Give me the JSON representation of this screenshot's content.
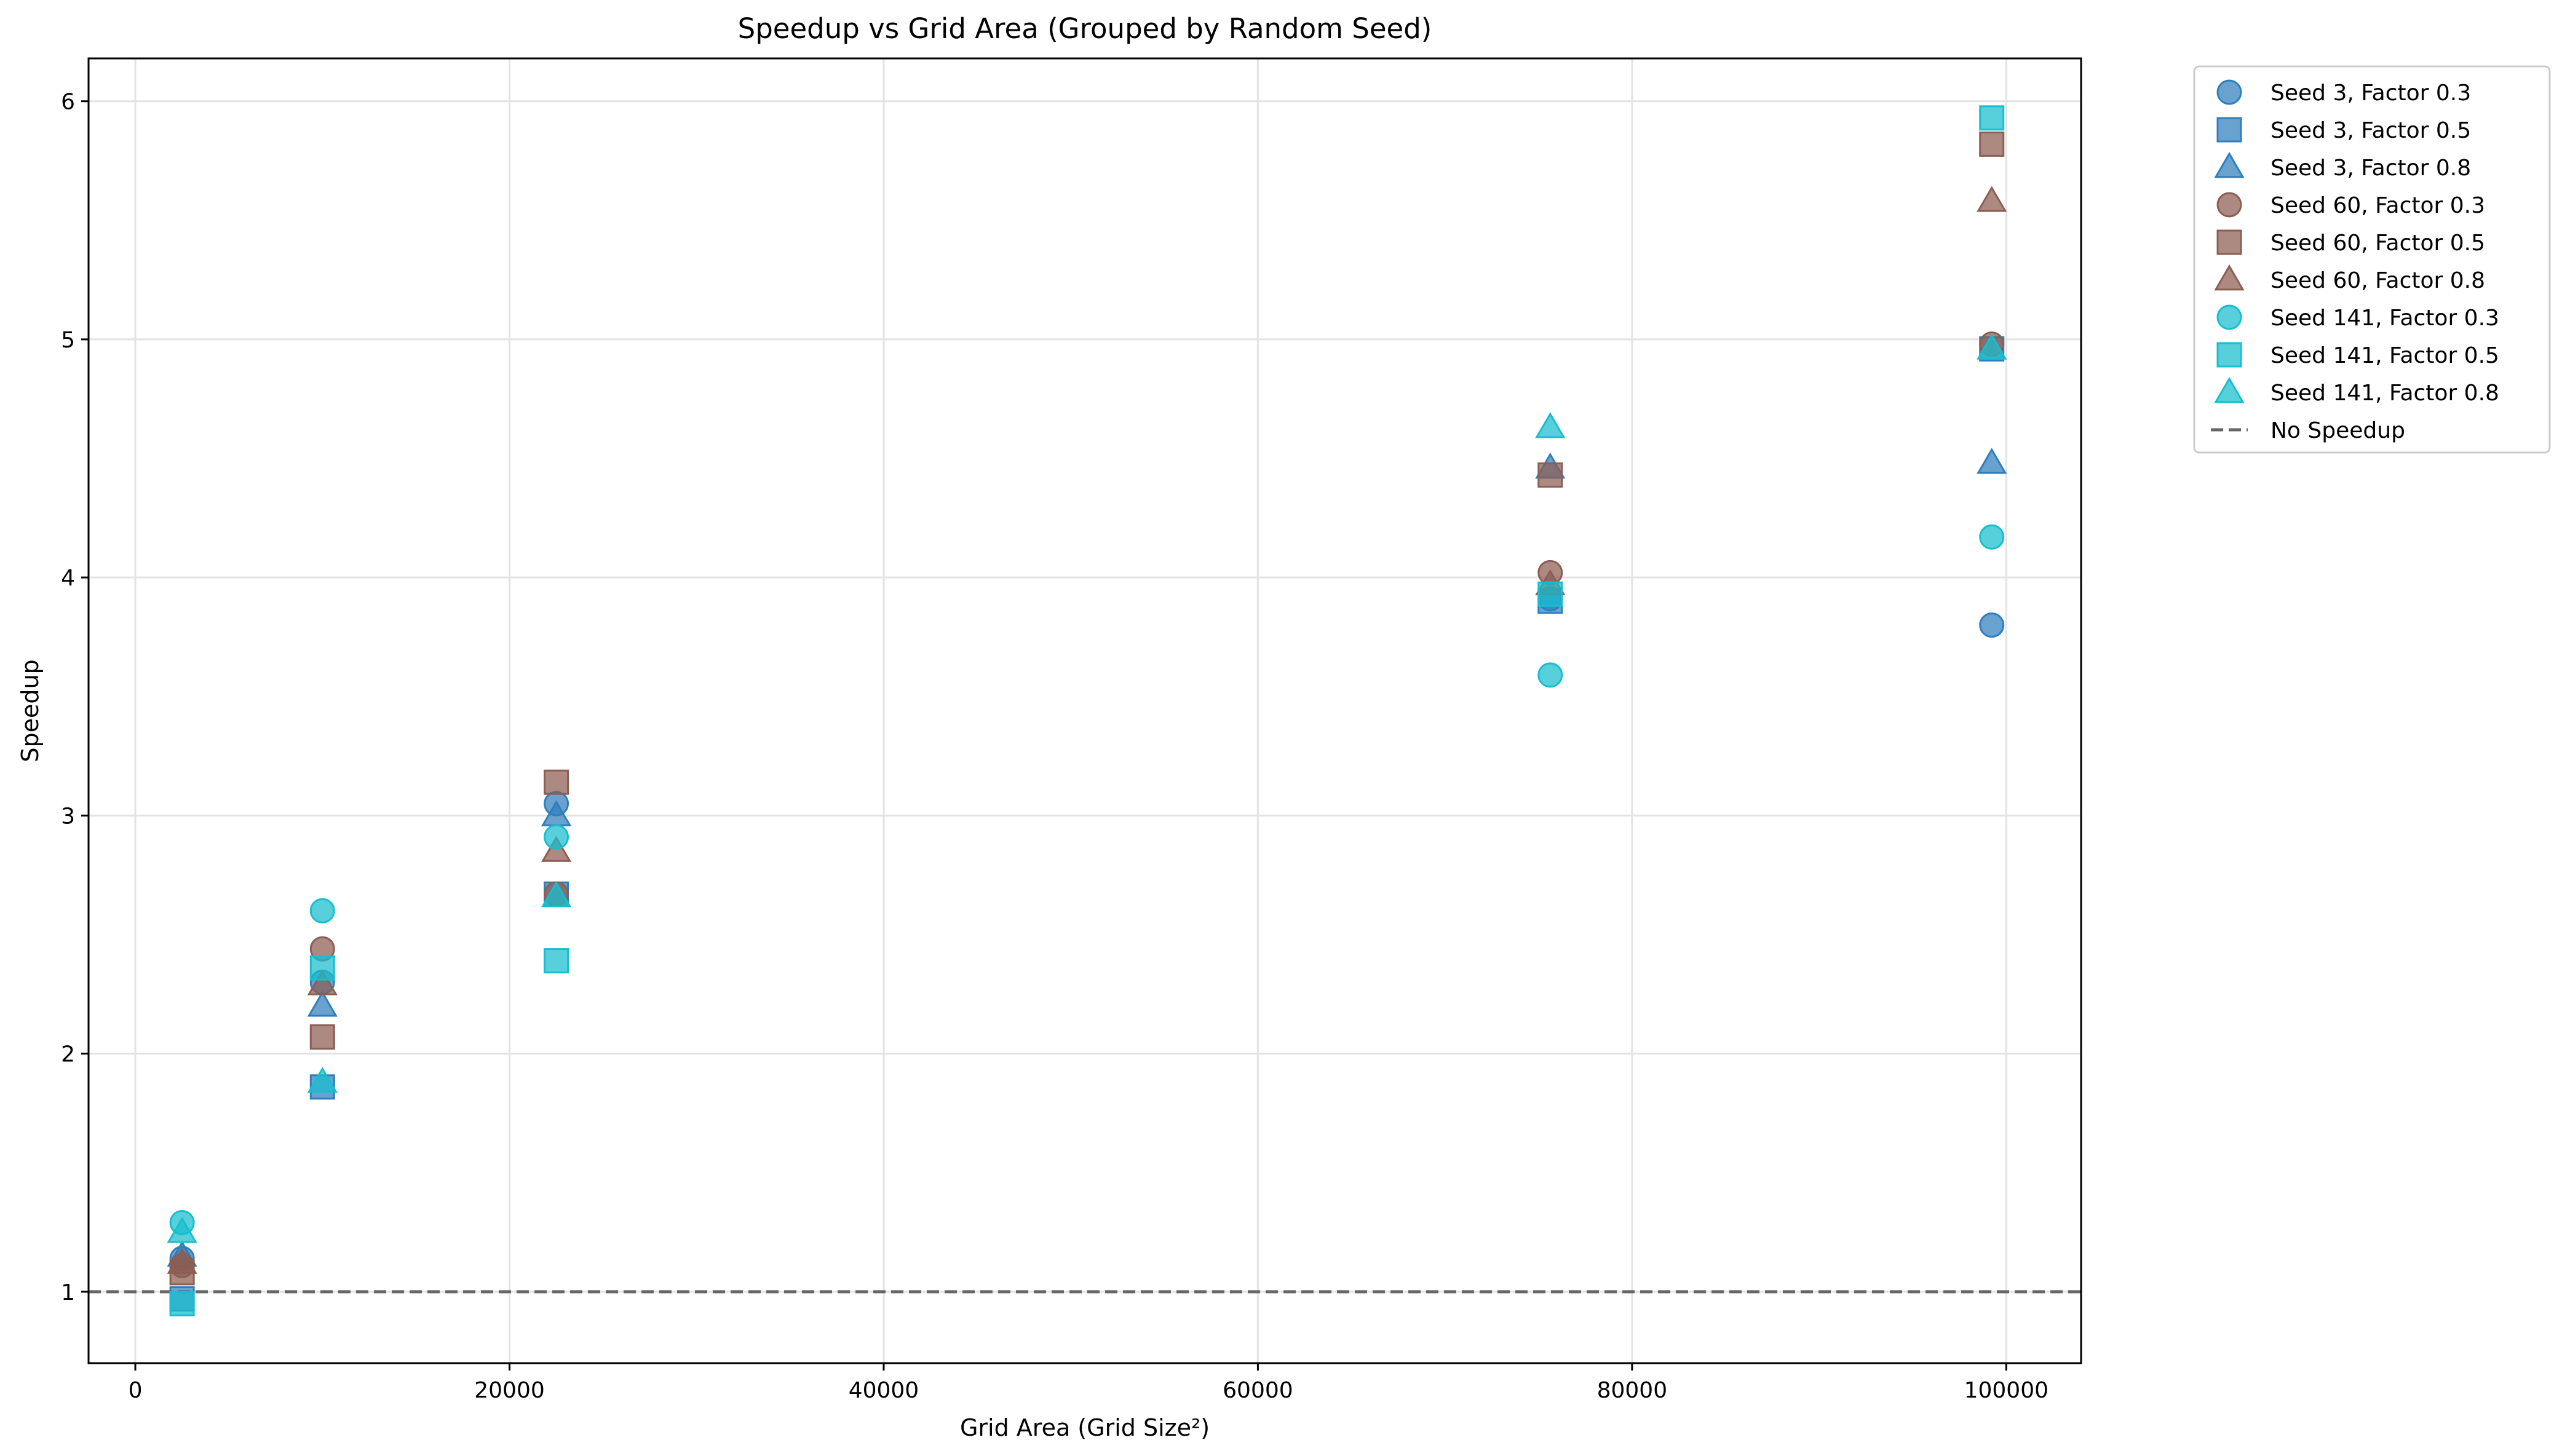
{
  "chart_data": {
    "type": "scatter",
    "title": "Speedup vs Grid Area (Grouped by Random Seed)",
    "xlabel": "Grid Area (Grid Size²)",
    "ylabel": "Speedup",
    "xlim": [
      -2500,
      104000
    ],
    "ylim": [
      0.7,
      6.18
    ],
    "xticks": [
      0,
      20000,
      40000,
      60000,
      80000,
      100000
    ],
    "yticks": [
      1,
      2,
      3,
      4,
      5,
      6
    ],
    "grid": true,
    "legend_position": "outside-top-right",
    "reference_line": {
      "name": "No Speedup",
      "y": 1,
      "style": "dashed",
      "color": "#666666"
    },
    "seed_colors": {
      "3": "#2f7ebc",
      "60": "#8c5d52",
      "141": "#17becf"
    },
    "x": [
      2500,
      10000,
      22500,
      75625,
      99225
    ],
    "series": [
      {
        "name": "Seed 3, Factor 0.3",
        "seed": "3",
        "marker": "circle",
        "values": [
          1.14,
          2.3,
          3.05,
          3.91,
          3.8
        ]
      },
      {
        "name": "Seed 3, Factor 0.5",
        "seed": "3",
        "marker": "square",
        "values": [
          0.97,
          1.86,
          2.67,
          3.9,
          4.96
        ]
      },
      {
        "name": "Seed 3, Factor 0.8",
        "seed": "3",
        "marker": "triangle",
        "values": [
          1.15,
          2.2,
          3.0,
          4.46,
          4.48
        ]
      },
      {
        "name": "Seed 60, Factor 0.3",
        "seed": "60",
        "marker": "circle",
        "values": [
          1.11,
          2.44,
          2.67,
          4.02,
          4.98
        ]
      },
      {
        "name": "Seed 60, Factor 0.5",
        "seed": "60",
        "marker": "square",
        "values": [
          1.08,
          2.07,
          3.14,
          4.43,
          5.82
        ]
      },
      {
        "name": "Seed 60, Factor 0.8",
        "seed": "60",
        "marker": "triangle",
        "values": [
          1.12,
          2.29,
          2.85,
          3.97,
          5.58
        ]
      },
      {
        "name": "Seed 141, Factor 0.3",
        "seed": "141",
        "marker": "circle",
        "values": [
          1.29,
          2.6,
          2.91,
          3.59,
          4.17
        ]
      },
      {
        "name": "Seed 141, Factor 0.5",
        "seed": "141",
        "marker": "square",
        "values": [
          0.95,
          2.36,
          2.39,
          3.93,
          5.93
        ]
      },
      {
        "name": "Seed 141, Factor 0.8",
        "seed": "141",
        "marker": "triangle",
        "values": [
          1.25,
          1.88,
          2.66,
          4.63,
          4.96
        ]
      }
    ]
  }
}
